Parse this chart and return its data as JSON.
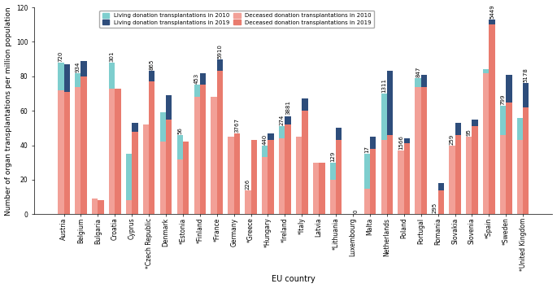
{
  "countries": [
    "Austria",
    "Belgium",
    "Bulgaria",
    "Croatia",
    "Cyprus",
    "*Czech Republic",
    "Denmark",
    "*Estonia",
    "*Finland",
    "*France",
    "Germany",
    "*Greece",
    "*Hungary",
    "*Ireland",
    "*Italy",
    "Latvia",
    "*Lithuania",
    "Luxembourg",
    "Malta",
    "Netherlands",
    "Poland",
    "Portugal",
    "Romania",
    "Slovakia",
    "Slovenia",
    "*Spain",
    "*Sweden",
    "*United Kingdom"
  ],
  "living_2010": [
    16,
    8,
    0,
    15,
    27,
    0,
    17,
    14,
    7,
    0,
    0,
    0,
    7,
    7,
    0,
    0,
    10,
    0,
    20,
    27,
    0,
    5,
    0,
    0,
    0,
    2,
    17,
    13
  ],
  "living_2019": [
    16,
    9,
    0,
    0,
    5,
    6,
    14,
    0,
    7,
    7,
    0,
    0,
    4,
    5,
    7,
    0,
    7,
    0,
    7,
    37,
    3,
    7,
    4,
    7,
    4,
    3,
    16,
    14
  ],
  "deceased_2010": [
    72,
    74,
    9,
    73,
    8,
    52,
    42,
    32,
    68,
    68,
    45,
    14,
    33,
    44,
    45,
    30,
    20,
    0,
    15,
    43,
    37,
    74,
    0,
    40,
    45,
    82,
    46,
    43
  ],
  "deceased_2019": [
    71,
    80,
    8,
    73,
    48,
    77,
    55,
    42,
    75,
    83,
    47,
    43,
    43,
    52,
    60,
    30,
    43,
    0,
    38,
    46,
    41,
    74,
    14,
    46,
    51,
    110,
    65,
    62
  ],
  "ann_2010": {
    "0": 720,
    "1": 934,
    "3": 301,
    "7": 56,
    "8": 453,
    "11": 226,
    "12": 440,
    "13": 274,
    "16": 129,
    "18": 17,
    "19": 1311,
    "20": 1566,
    "21": 847,
    "22": 295,
    "23": 259,
    "24": 95,
    "26": 799
  },
  "ann_2019": {
    "5": 865,
    "9": 5910,
    "10": 3767,
    "13": 3881,
    "17": 0,
    "25": 5449,
    "27": 5178
  },
  "color_living_2010": "#7ECECE",
  "color_living_2019": "#2E4D7B",
  "color_deceased_2010": "#F2A097",
  "color_deceased_2019": "#E97B6E",
  "ylabel": "Number of organ transplantations per million population",
  "xlabel": "EU country",
  "ylim": [
    0,
    120
  ],
  "yticks": [
    0,
    20,
    40,
    60,
    80,
    100,
    120
  ],
  "legend_order": [
    "living_2010",
    "living_2019",
    "deceased_2010",
    "deceased_2019"
  ],
  "legend_labels": [
    "Living donation transplantations in 2010",
    "Living donation transplantations in 2019",
    "Deceased donation transplantations in 2010",
    "Deceased donation transplantations in 2019"
  ],
  "bar_width": 0.35,
  "ann_fontsize": 5.0,
  "tick_fontsize": 5.5,
  "ylabel_fontsize": 6.5,
  "xlabel_fontsize": 7.0
}
